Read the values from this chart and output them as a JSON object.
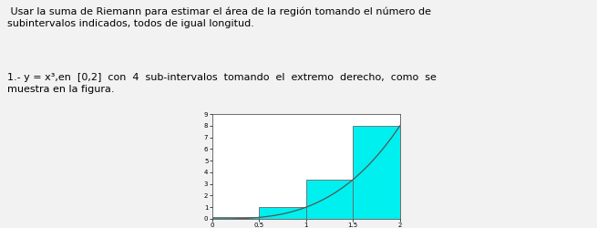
{
  "title_text": " Usar la suma de Riemann para estimar el área de la región tomando el número de\nsubintervalos indicados, todos de igual longitud.",
  "problem_text": "1.- y = x³,en  [0,2]  con  4  sub-intervalos  tomando  el  extremo  derecho,  como  se\nmuestra en la figura.",
  "x_start": 0,
  "x_end": 2,
  "n_subintervals": 4,
  "bar_color": "#00EFEF",
  "bar_edge_color": "#666666",
  "curve_color": "#555555",
  "background_color": "#f2f2f2",
  "plot_bg": "#ffffff",
  "fig_width": 6.55,
  "fig_height": 2.5,
  "dpi": 100,
  "text_fontsize": 8.0,
  "xlim": [
    0,
    2
  ],
  "ylim": [
    0,
    9
  ],
  "yticks": [
    0,
    1,
    2,
    3,
    4,
    5,
    6,
    7,
    8,
    9
  ],
  "xticks": [
    0,
    0.5,
    1.0,
    1.5,
    2.0
  ],
  "xtick_labels": [
    "0",
    "0.5",
    "1",
    "1.5",
    "2"
  ]
}
